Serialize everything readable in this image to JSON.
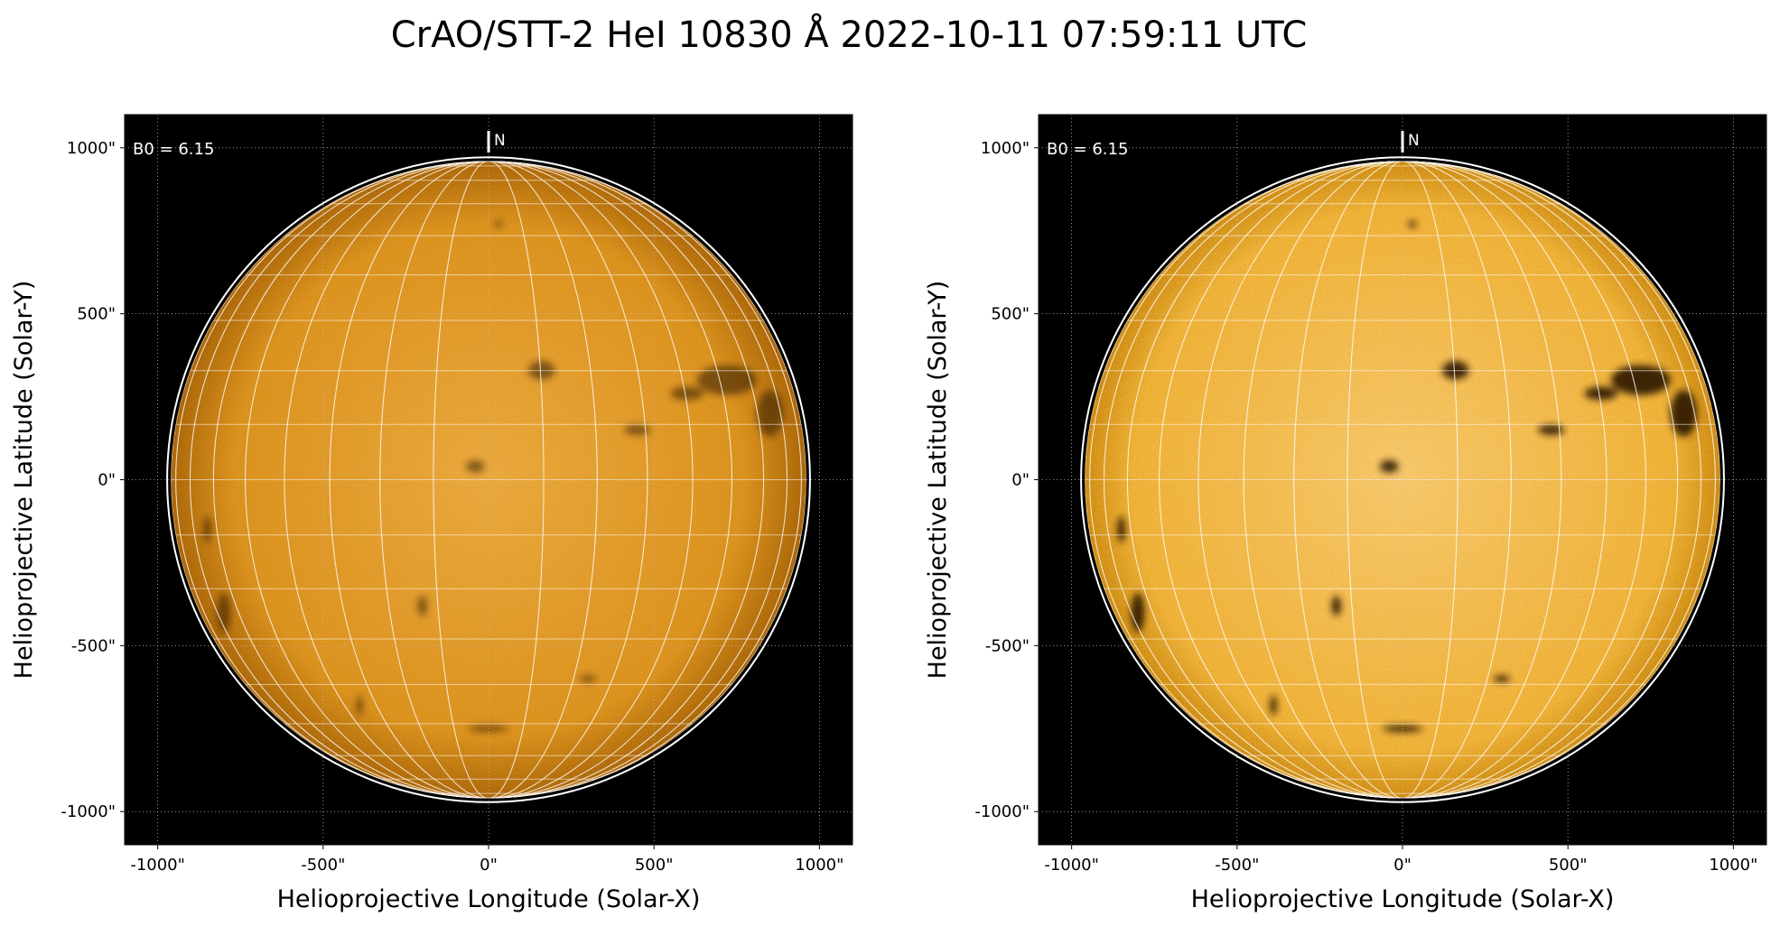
{
  "title": "CrAO/STT-2 HeI 10830 Å 2022-10-11 07:59:11 UTC",
  "panels": [
    {
      "annotation": "B0 = 6.15",
      "north": "N",
      "xlabel": "Helioprojective Longitude (Solar-X)",
      "ylabel": "Helioprojective Latitude (Solar-Y)",
      "xlim": [
        -1100,
        1100
      ],
      "ylim": [
        -1100,
        1100
      ],
      "xticks": [
        {
          "value": -1000,
          "label": "-1000\""
        },
        {
          "value": -500,
          "label": "-500\""
        },
        {
          "value": 0,
          "label": "0\""
        },
        {
          "value": 500,
          "label": "500\""
        },
        {
          "value": 1000,
          "label": "1000\""
        }
      ],
      "yticks": [
        {
          "value": -1000,
          "label": "-1000\""
        },
        {
          "value": -500,
          "label": "-500\""
        },
        {
          "value": 0,
          "label": "0\""
        },
        {
          "value": 500,
          "label": "500\""
        },
        {
          "value": 1000,
          "label": "1000\""
        }
      ]
    },
    {
      "annotation": "B0 = 6.15",
      "north": "N",
      "xlabel": "Helioprojective Longitude (Solar-X)",
      "ylabel": "Helioprojective Latitude (Solar-Y)",
      "xlim": [
        -1100,
        1100
      ],
      "ylim": [
        -1100,
        1100
      ],
      "xticks": [
        {
          "value": -1000,
          "label": "-1000\""
        },
        {
          "value": -500,
          "label": "-500\""
        },
        {
          "value": 0,
          "label": "0\""
        },
        {
          "value": 500,
          "label": "500\""
        },
        {
          "value": 1000,
          "label": "1000\""
        }
      ],
      "yticks": [
        {
          "value": -1000,
          "label": "-1000\""
        },
        {
          "value": -500,
          "label": "-500\""
        },
        {
          "value": 0,
          "label": "0\""
        },
        {
          "value": 500,
          "label": "500\""
        },
        {
          "value": 1000,
          "label": "1000\""
        }
      ]
    }
  ]
}
